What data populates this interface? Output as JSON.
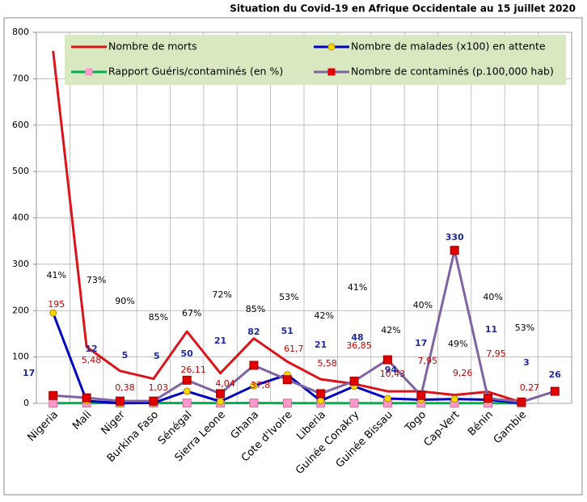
{
  "chart_data": {
    "type": "line",
    "title": "Situation du Covid-19 en Afrique Occidentale au 15 juillet 2020",
    "categories": [
      "Nigeria",
      "Mali",
      "Niger",
      "Burkina Faso",
      "Sénégal",
      "Sierra Leone",
      "Ghana",
      "Cote d'Ivoire",
      "Liberia",
      "Guinée Conakry",
      "Guinée Bissau",
      "Togo",
      "Cap-Vert",
      "Bénin",
      "Gambie",
      null
    ],
    "series": [
      {
        "name": "Nombre de morts",
        "color": "#d9151b",
        "values": [
          760,
          122,
          70,
          53,
          155,
          65,
          140,
          90,
          52,
          42,
          26,
          26,
          18,
          25,
          2,
          null
        ]
      },
      {
        "name": "Nombre de malades (x100) en attente",
        "color": "#0000c0",
        "marker": "circle",
        "marker_color": "#ffd700",
        "values": [
          195,
          5.48,
          0.38,
          1.03,
          26.11,
          4.04,
          37.8,
          61.7,
          5.58,
          36.85,
          10.43,
          7.95,
          9.26,
          7.95,
          0.27,
          null
        ],
        "value_labels": [
          "195",
          "5,48",
          "0,38",
          "1,03",
          "26,11",
          "4,04",
          "37,8",
          "61,7",
          "5,58",
          "36,85",
          "10,43",
          "7,95",
          "9,26",
          "7,95",
          "0,27",
          null
        ],
        "label_color": "#c00000"
      },
      {
        "name": "Rapport Guéris/contaminés (en %)",
        "color": "#00b050",
        "marker": "square",
        "marker_color": "#ff99cc",
        "values": [
          0.41,
          0.73,
          0.9,
          0.85,
          0.67,
          0.72,
          0.85,
          0.53,
          0.42,
          0.41,
          0.42,
          0.4,
          0.49,
          0.4,
          0.53,
          null
        ],
        "value_labels": [
          "41%",
          "73%",
          "90%",
          "85%",
          "67%",
          "72%",
          "85%",
          "53%",
          "42%",
          "41%",
          "42%",
          "40%",
          "49%",
          "40%",
          "53%",
          null
        ],
        "label_color": "#000000"
      },
      {
        "name": "Nombre de contaminés (p.100,000 hab)",
        "color": "#8064a2",
        "marker": "square",
        "marker_color": "#e00000",
        "values": [
          17,
          12,
          5,
          5,
          50,
          21,
          82,
          51,
          21,
          48,
          94,
          17,
          330,
          11,
          3,
          26
        ],
        "label_color": "#1f2a9c"
      }
    ],
    "ylim": [
      0,
      800
    ],
    "yticks": [
      0,
      100,
      200,
      300,
      400,
      500,
      600,
      700,
      800
    ],
    "grid": true,
    "legend": "top"
  }
}
